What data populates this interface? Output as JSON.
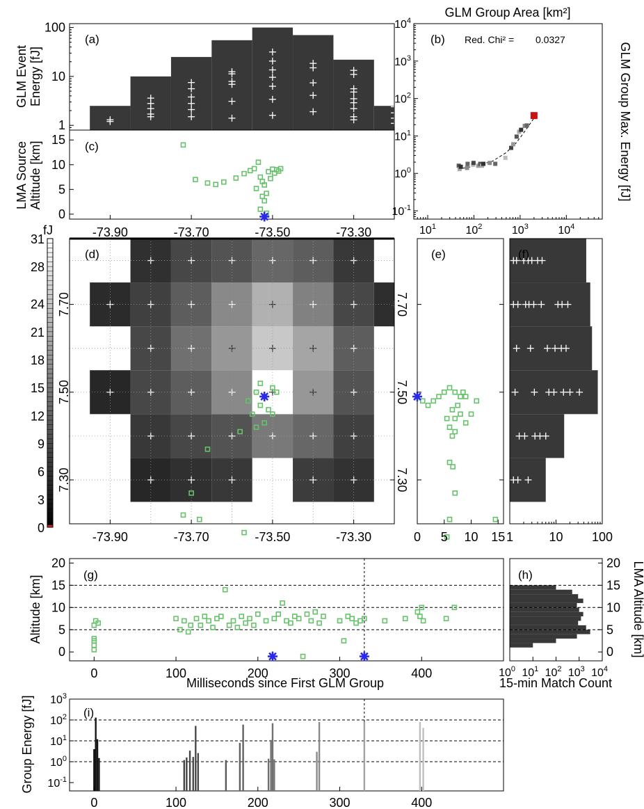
{
  "chart_data": [
    {
      "id": "a",
      "type": "bar",
      "panel_label": "(a)",
      "ylabel": [
        "GLM Event",
        "Energy [fJ]"
      ],
      "yscale": "log",
      "ylim": [
        0.8,
        120
      ],
      "ytick_labels": [
        "1",
        "10",
        "100"
      ],
      "ytick_values": [
        1,
        10,
        100
      ],
      "xlim": [
        -74.0,
        -73.2
      ],
      "bar_edges": [
        -73.95,
        -73.85,
        -73.75,
        -73.65,
        -73.55,
        -73.45,
        -73.35,
        -73.25
      ],
      "bar_values": [
        2.5,
        10,
        25,
        55,
        100,
        70,
        22,
        2.5
      ],
      "event_lons": [
        -73.9,
        -73.8,
        -73.7,
        -73.6,
        -73.5,
        -73.4,
        -73.3,
        -73.2
      ],
      "event_energies": [
        [
          1.2,
          1.3
        ],
        [
          1.5,
          1.7,
          2.2,
          2.8,
          3.6
        ],
        [
          1.5,
          2.1,
          2.8,
          3.8,
          5.6,
          7.5
        ],
        [
          1.4,
          3.1,
          6.9,
          7.9,
          11.3,
          12.5
        ],
        [
          1.6,
          3.4,
          6.3,
          9.6,
          13.6,
          20.6,
          31.6
        ],
        [
          1.9,
          4.1,
          7.4,
          15.0,
          18.5
        ],
        [
          1.3,
          1.5,
          2.2,
          2.9,
          3.5,
          4.8,
          5.6,
          11.0,
          13.3
        ],
        [
          1.1,
          1.4,
          1.8,
          2.4,
          2.8,
          3.8,
          6.8
        ]
      ]
    },
    {
      "id": "c",
      "type": "scatter",
      "panel_label": "(c)",
      "ylabel": [
        "LMA Source",
        "Altitude [km]"
      ],
      "ylim": [
        -1,
        17
      ],
      "ytick_values": [
        0,
        5,
        10,
        15
      ],
      "xlim": [
        -74.0,
        -73.2
      ],
      "xtick_values": [
        -73.9,
        -73.7,
        -73.5,
        -73.3
      ],
      "xtick_labels": [
        "-73.90",
        "-73.70",
        "-73.50",
        "-73.30"
      ],
      "sources": [
        [
          -73.72,
          14
        ],
        [
          -73.69,
          7
        ],
        [
          -73.66,
          6.3
        ],
        [
          -73.64,
          6
        ],
        [
          -73.62,
          6.5
        ],
        [
          -73.59,
          7.3
        ],
        [
          -73.57,
          8.2
        ],
        [
          -73.555,
          8.8
        ],
        [
          -73.545,
          9.2
        ],
        [
          -73.535,
          10.5
        ],
        [
          -73.53,
          7.5
        ],
        [
          -73.525,
          6.6
        ],
        [
          -73.52,
          5.9
        ],
        [
          -73.515,
          4.2
        ],
        [
          -73.51,
          8.6
        ],
        [
          -73.505,
          7.2
        ],
        [
          -73.5,
          9.1
        ],
        [
          -73.495,
          8.3
        ],
        [
          -73.49,
          9.0
        ],
        [
          -73.485,
          8.7
        ],
        [
          -73.48,
          9.2
        ],
        [
          -73.54,
          5.2
        ],
        [
          -73.52,
          2.7
        ],
        [
          -73.53,
          1.0
        ],
        [
          -73.515,
          0.2
        ],
        [
          -73.525,
          3.6
        ]
      ],
      "marker": [
        -73.52,
        -0.5
      ]
    },
    {
      "id": "b",
      "type": "scatter",
      "panel_label": "(b)",
      "title": "GLM Group Area [km²]",
      "annotation": "Red. Chi² =",
      "chi2": "0.0327",
      "ylabel": "GLM Group Max. Energy [fJ]",
      "xscale": "log",
      "yscale": "log",
      "xlim": [
        5,
        60000
      ],
      "ylim": [
        0.06,
        10000
      ],
      "xtick_values": [
        10,
        100,
        1000,
        10000
      ],
      "ytick_values": [
        0.1,
        1,
        10,
        100,
        1000,
        10000
      ],
      "points": [
        [
          47,
          1.6
        ],
        [
          49,
          1.3
        ],
        [
          52,
          1.5
        ],
        [
          71,
          1.4
        ],
        [
          73,
          1.8
        ],
        [
          96,
          1.7
        ],
        [
          98,
          1.9
        ],
        [
          124,
          1.6
        ],
        [
          137,
          1.8
        ],
        [
          150,
          1.6
        ],
        [
          160,
          1.8
        ],
        [
          220,
          1.9
        ],
        [
          290,
          1.8
        ],
        [
          480,
          2.6
        ],
        [
          640,
          4.8
        ],
        [
          710,
          6.0
        ],
        [
          840,
          9.6
        ],
        [
          950,
          12.9
        ],
        [
          1050,
          14.6
        ],
        [
          1260,
          18.6
        ],
        [
          1400,
          19.1
        ]
      ],
      "highlight_point": [
        2000,
        35
      ],
      "fit_curve": [
        [
          45,
          1.3
        ],
        [
          100,
          1.55
        ],
        [
          250,
          2.1
        ],
        [
          500,
          3.6
        ],
        [
          800,
          6.3
        ],
        [
          1100,
          10.5
        ],
        [
          1500,
          18.0
        ],
        [
          2000,
          30.0
        ]
      ]
    },
    {
      "id": "d",
      "type": "heatmap",
      "panel_label": "(d)",
      "colorbar_unit": "fJ",
      "colorbar_ticks": [
        0,
        3,
        6,
        9,
        12,
        15,
        18,
        21,
        24,
        28,
        31
      ],
      "colorbar_range": [
        0,
        31
      ],
      "xlim": [
        -74.0,
        -73.2
      ],
      "ylim": [
        7.2,
        7.85
      ],
      "xtick_values": [
        -73.9,
        -73.7,
        -73.5,
        -73.3
      ],
      "xtick_labels": [
        "-73.90",
        "-73.70",
        "-73.50",
        "-73.30"
      ],
      "ytick_values": [
        7.3,
        7.5,
        7.7
      ],
      "ytick_labels": [
        "7.30",
        "7.50",
        "7.70"
      ],
      "pixel_lon_edges": [
        -73.95,
        -73.85,
        -73.75,
        -73.65,
        -73.55,
        -73.45,
        -73.35,
        -73.25
      ],
      "pixel_lat_edges": [
        7.25,
        7.35,
        7.45,
        7.55,
        7.65,
        7.75,
        7.85
      ],
      "pixel_energy": [
        [
          null,
          1.0,
          1.5,
          2.0,
          null,
          2.2,
          1.6,
          null
        ],
        [
          null,
          2.0,
          3.0,
          4.0,
          8.0,
          6.0,
          2.5,
          null
        ],
        [
          1.0,
          3.0,
          5.0,
          10.0,
          31.0,
          12.0,
          4.0,
          null
        ],
        [
          null,
          3.0,
          7.0,
          12.0,
          20.0,
          14.0,
          5.0,
          null
        ],
        [
          1.2,
          2.5,
          5.0,
          10.0,
          16.0,
          9.0,
          3.0,
          1.4
        ],
        [
          null,
          1.5,
          3.0,
          4.0,
          6.0,
          5.0,
          2.0,
          null
        ],
        [
          null,
          null,
          null,
          1.8,
          2.5,
          2.0,
          null,
          null
        ]
      ],
      "event_lons": [
        -73.9,
        -73.8,
        -73.7,
        -73.6,
        -73.5,
        -73.4,
        -73.3,
        -73.2
      ],
      "event_lats": [
        7.3,
        7.4,
        7.5,
        7.6,
        7.7,
        7.8
      ],
      "sources": [
        [
          -73.52,
          7.49
        ],
        [
          -73.54,
          7.5
        ],
        [
          -73.5,
          7.51
        ],
        [
          -73.53,
          7.47
        ],
        [
          -73.51,
          7.46
        ],
        [
          -73.55,
          7.45
        ],
        [
          -73.52,
          7.43
        ],
        [
          -73.49,
          7.5
        ],
        [
          -73.56,
          7.48
        ],
        [
          -73.53,
          7.52
        ],
        [
          -73.5,
          7.45
        ],
        [
          -73.54,
          7.42
        ],
        [
          -73.58,
          7.41
        ],
        [
          -73.66,
          7.37
        ],
        [
          -73.7,
          7.27
        ],
        [
          -73.72,
          7.22
        ],
        [
          -73.68,
          7.21
        ],
        [
          -73.57,
          7.18
        ]
      ],
      "marker": [
        -73.52,
        7.49
      ]
    },
    {
      "id": "e",
      "type": "scatter",
      "panel_label": "(e)",
      "xlim": [
        0,
        16
      ],
      "ylim": [
        7.2,
        7.85
      ],
      "xtick_values": [
        0,
        5,
        10,
        15
      ],
      "ytick_values": [
        7.3,
        7.5,
        7.7
      ],
      "sources": [
        [
          1,
          7.48
        ],
        [
          2,
          7.47
        ],
        [
          3,
          7.48
        ],
        [
          4,
          7.49
        ],
        [
          5,
          7.5
        ],
        [
          6,
          7.51
        ],
        [
          7,
          7.5
        ],
        [
          8,
          7.49
        ],
        [
          8.5,
          7.5
        ],
        [
          9,
          7.49
        ],
        [
          7.5,
          7.47
        ],
        [
          6.5,
          7.46
        ],
        [
          8,
          7.45
        ],
        [
          9,
          7.43
        ],
        [
          7,
          7.44
        ],
        [
          6,
          7.42
        ],
        [
          5.5,
          7.44
        ],
        [
          10,
          7.45
        ],
        [
          11,
          7.48
        ],
        [
          6.5,
          7.4
        ],
        [
          7,
          7.41
        ],
        [
          6,
          7.34
        ],
        [
          6.6,
          7.33
        ],
        [
          7,
          7.27
        ],
        [
          6,
          7.21
        ],
        [
          14.5,
          7.21
        ],
        [
          5.5,
          7.17
        ]
      ],
      "marker": [
        0,
        7.49
      ]
    },
    {
      "id": "f",
      "type": "bar",
      "panel_label": "(f)",
      "xscale": "log",
      "xlim": [
        1,
        100
      ],
      "xtick_values": [
        1,
        10,
        100
      ],
      "xtick_labels": [
        "1",
        "10",
        "100"
      ],
      "ylim": [
        7.2,
        7.85
      ],
      "bar_edges": [
        7.25,
        7.35,
        7.45,
        7.55,
        7.65,
        7.75,
        7.85
      ],
      "bar_values": [
        6,
        15,
        80,
        60,
        55,
        45,
        5
      ],
      "event_lats": [
        7.3,
        7.4,
        7.5,
        7.6,
        7.7,
        7.8
      ],
      "event_energies": [
        [
          1.2,
          1.5,
          2.5
        ],
        [
          1.6,
          2.1,
          3.5,
          4.5,
          6.0
        ],
        [
          1.3,
          3.4,
          7.0,
          9.0,
          14.5,
          20.0,
          32.0
        ],
        [
          1.4,
          2.8,
          6.5,
          9.5,
          13.0,
          16.5
        ],
        [
          1.2,
          1.5,
          2.2,
          2.6,
          3.3,
          4.8,
          11.0,
          13.5,
          18.0
        ],
        [
          1.2,
          1.4,
          2.0,
          2.5,
          3.0,
          4.0,
          5.0
        ],
        [
          1.3,
          1.6,
          2.0
        ]
      ]
    },
    {
      "id": "g",
      "type": "scatter",
      "panel_label": "(g)",
      "xlabel": "Milliseconds since First GLM Group",
      "ylabel": "Altitude [km]",
      "xlim": [
        -30,
        500
      ],
      "ylim": [
        -2,
        21
      ],
      "xtick_values": [
        0,
        100,
        200,
        300,
        400
      ],
      "ytick_values": [
        0,
        5,
        10,
        15,
        20
      ],
      "hlines": [
        5,
        10,
        15
      ],
      "vline": 330,
      "markers": [
        [
          218,
          -1
        ],
        [
          330,
          -1
        ]
      ],
      "sources": [
        [
          0,
          6
        ],
        [
          2,
          7
        ],
        [
          0,
          3
        ],
        [
          0,
          1.5
        ],
        [
          0,
          0.5
        ],
        [
          0,
          2.5
        ],
        [
          5,
          6.5
        ],
        [
          100,
          7.5
        ],
        [
          105,
          5
        ],
        [
          110,
          7
        ],
        [
          115,
          4.5
        ],
        [
          118,
          6
        ],
        [
          125,
          7.5
        ],
        [
          130,
          6
        ],
        [
          135,
          8
        ],
        [
          140,
          7
        ],
        [
          145,
          5.5
        ],
        [
          150,
          7.5
        ],
        [
          155,
          8
        ],
        [
          160,
          14
        ],
        [
          165,
          6
        ],
        [
          170,
          7
        ],
        [
          175,
          5.5
        ],
        [
          180,
          8
        ],
        [
          185,
          6.5
        ],
        [
          190,
          7.5
        ],
        [
          195,
          6
        ],
        [
          200,
          8.5
        ],
        [
          210,
          7
        ],
        [
          220,
          7.5
        ],
        [
          225,
          8.5
        ],
        [
          230,
          11
        ],
        [
          235,
          7
        ],
        [
          240,
          6.5
        ],
        [
          245,
          8
        ],
        [
          250,
          7.5
        ],
        [
          255,
          -1
        ],
        [
          260,
          8.5
        ],
        [
          265,
          7
        ],
        [
          270,
          9
        ],
        [
          275,
          6.5
        ],
        [
          280,
          8
        ],
        [
          300,
          7
        ],
        [
          305,
          2.5
        ],
        [
          310,
          8
        ],
        [
          315,
          7.5
        ],
        [
          320,
          6.5
        ],
        [
          325,
          7
        ],
        [
          330,
          7.5
        ],
        [
          355,
          7
        ],
        [
          380,
          7.5
        ],
        [
          395,
          9
        ],
        [
          398,
          8
        ],
        [
          400,
          10
        ],
        [
          402,
          7
        ],
        [
          430,
          7.5
        ],
        [
          440,
          10
        ]
      ]
    },
    {
      "id": "h",
      "type": "bar",
      "panel_label": "(h)",
      "xlabel": "15-min Match Count",
      "ylabel": "LMA Altitude [km]",
      "xscale": "log",
      "xlim": [
        1,
        10000
      ],
      "xtick_values": [
        1,
        10,
        100,
        1000,
        10000
      ],
      "ylim": [
        -2,
        21
      ],
      "ytick_values": [
        0,
        5,
        10,
        15,
        20
      ],
      "hlines": [
        5,
        10,
        15
      ],
      "bar_edges": [
        1,
        2,
        3,
        4,
        5,
        6,
        7,
        8,
        9,
        10,
        11,
        12,
        13,
        14,
        15
      ],
      "bar_values": [
        10,
        100,
        800,
        3000,
        2000,
        900,
        1200,
        1500,
        1000,
        800,
        1500,
        900,
        500,
        100
      ]
    },
    {
      "id": "i",
      "type": "bar",
      "panel_label": "(i)",
      "ylabel": "Group Energy [fJ]",
      "yscale": "log",
      "ylim": [
        0.04,
        1000
      ],
      "ytick_values": [
        0.1,
        1,
        10,
        100,
        1000
      ],
      "xlim": [
        -30,
        500
      ],
      "xtick_values": [
        0,
        100,
        200,
        300,
        400
      ],
      "hlines": [
        1,
        10,
        100
      ],
      "vline": 330,
      "bars": [
        [
          0,
          4.0
        ],
        [
          2,
          130
        ],
        [
          4,
          12
        ],
        [
          6,
          1.5
        ],
        [
          110,
          1.2
        ],
        [
          113,
          1.6
        ],
        [
          117,
          3.4
        ],
        [
          121,
          1.7
        ],
        [
          124,
          52
        ],
        [
          127,
          2.6
        ],
        [
          161,
          1.2
        ],
        [
          178,
          8.0
        ],
        [
          182,
          60
        ],
        [
          213,
          1.4
        ],
        [
          216,
          11
        ],
        [
          218,
          70
        ],
        [
          220,
          1.3
        ],
        [
          272,
          3.0
        ],
        [
          275,
          80
        ],
        [
          330,
          80
        ],
        [
          398,
          80
        ],
        [
          402,
          42
        ]
      ]
    }
  ]
}
